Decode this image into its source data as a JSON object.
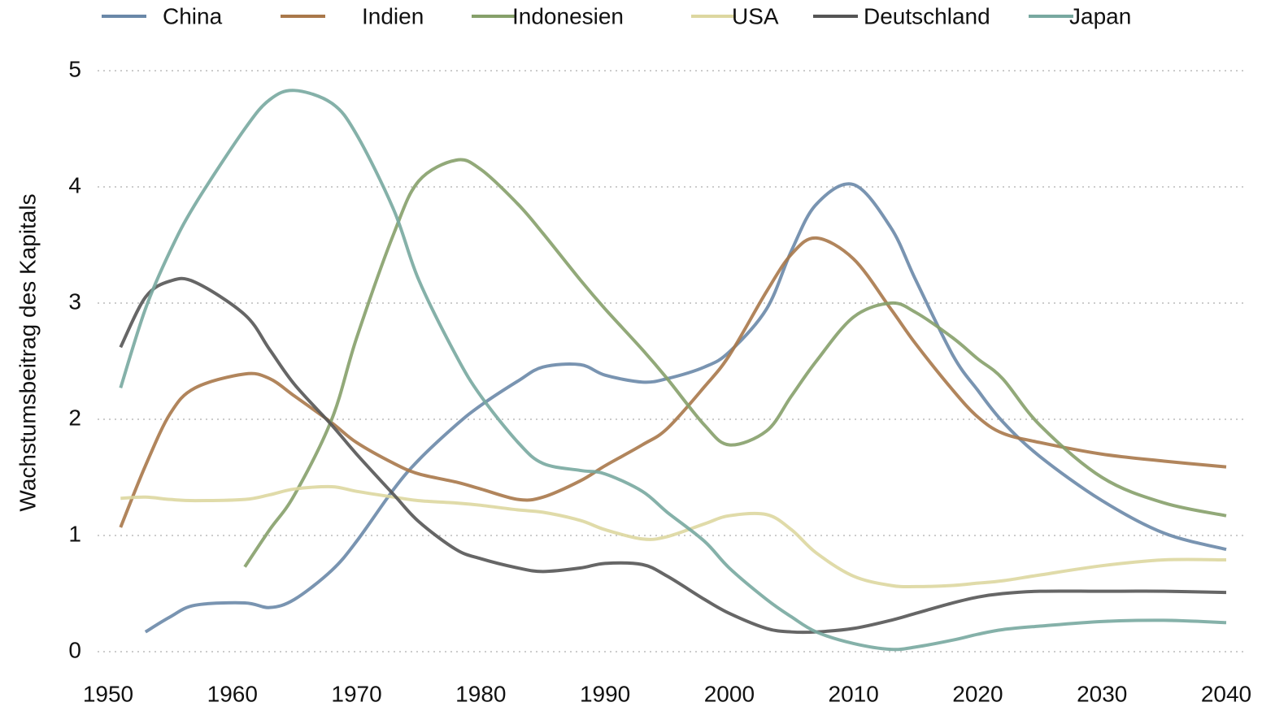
{
  "chart_data": {
    "type": "line",
    "y_label": "Wachstumsbeitrag des Kapitals",
    "x": [
      1951,
      1953,
      1955,
      1957,
      1961,
      1963,
      1965,
      1968,
      1970,
      1973,
      1975,
      1978,
      1980,
      1983,
      1985,
      1988,
      1990,
      1993,
      1995,
      1998,
      2000,
      2003,
      2005,
      2007,
      2010,
      2013,
      2015,
      2018,
      2020,
      2022,
      2025,
      2030,
      2035,
      2040
    ],
    "series": [
      {
        "name": "China",
        "color": "#6a88a8",
        "values": [
          null,
          0.17,
          0.3,
          0.4,
          0.42,
          0.38,
          0.45,
          0.7,
          0.95,
          1.4,
          1.65,
          1.95,
          2.12,
          2.33,
          2.45,
          2.47,
          2.38,
          2.32,
          2.35,
          2.45,
          2.58,
          2.95,
          3.45,
          3.85,
          4.02,
          3.65,
          3.2,
          2.55,
          2.25,
          1.98,
          1.68,
          1.3,
          1.02,
          0.88
        ]
      },
      {
        "name": "Indien",
        "color": "#a9784a",
        "values": [
          1.07,
          1.6,
          2.05,
          2.27,
          2.39,
          2.35,
          2.2,
          1.97,
          1.8,
          1.62,
          1.53,
          1.46,
          1.4,
          1.31,
          1.33,
          1.47,
          1.6,
          1.78,
          1.92,
          2.28,
          2.55,
          3.1,
          3.42,
          3.56,
          3.38,
          2.95,
          2.65,
          2.25,
          2.02,
          1.88,
          1.8,
          1.7,
          1.64,
          1.59
        ]
      },
      {
        "name": "Indonesien",
        "color": "#86a06a",
        "values": [
          null,
          null,
          null,
          null,
          0.73,
          1.05,
          1.35,
          2.0,
          2.7,
          3.6,
          4.05,
          4.23,
          4.15,
          3.85,
          3.6,
          3.2,
          2.95,
          2.6,
          2.35,
          1.95,
          1.78,
          1.9,
          2.2,
          2.5,
          2.88,
          3.0,
          2.92,
          2.7,
          2.52,
          2.35,
          1.95,
          1.5,
          1.28,
          1.17
        ]
      },
      {
        "name": "USA",
        "color": "#ddd7a0",
        "values": [
          1.32,
          1.33,
          1.31,
          1.3,
          1.31,
          1.35,
          1.4,
          1.42,
          1.38,
          1.33,
          1.3,
          1.28,
          1.26,
          1.22,
          1.2,
          1.13,
          1.05,
          0.97,
          0.99,
          1.1,
          1.17,
          1.18,
          1.05,
          0.85,
          0.65,
          0.57,
          0.56,
          0.57,
          0.59,
          0.61,
          0.66,
          0.74,
          0.79,
          0.79
        ]
      },
      {
        "name": "Deutschland",
        "color": "#555555",
        "values": [
          2.62,
          3.05,
          3.19,
          3.18,
          2.9,
          2.6,
          2.3,
          1.95,
          1.7,
          1.35,
          1.12,
          0.88,
          0.8,
          0.72,
          0.69,
          0.72,
          0.76,
          0.75,
          0.65,
          0.45,
          0.33,
          0.2,
          0.17,
          0.17,
          0.2,
          0.27,
          0.33,
          0.42,
          0.47,
          0.5,
          0.52,
          0.52,
          0.52,
          0.51
        ]
      },
      {
        "name": "Japan",
        "color": "#78a8a0",
        "values": [
          2.27,
          2.95,
          3.45,
          3.85,
          4.5,
          4.75,
          4.83,
          4.72,
          4.45,
          3.8,
          3.2,
          2.55,
          2.2,
          1.8,
          1.62,
          1.56,
          1.53,
          1.38,
          1.2,
          0.95,
          0.72,
          0.45,
          0.3,
          0.17,
          0.07,
          0.02,
          0.04,
          0.1,
          0.15,
          0.19,
          0.22,
          0.26,
          0.27,
          0.25
        ]
      }
    ],
    "xlim": [
      1950,
      2040
    ],
    "xticks": [
      1950,
      1960,
      1970,
      1980,
      1990,
      2000,
      2010,
      2020,
      2030,
      2040
    ],
    "ylim": [
      0,
      5
    ],
    "yticks": [
      0,
      1,
      2,
      3,
      4,
      5
    ],
    "grid": true
  }
}
